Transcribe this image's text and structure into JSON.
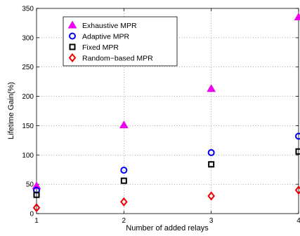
{
  "chart_data": {
    "type": "scatter",
    "title": "",
    "xlabel": "Number of added relays",
    "ylabel": "Lifetime Gain(%)",
    "xlim": [
      1,
      4
    ],
    "ylim": [
      0,
      350
    ],
    "xticks": [
      1,
      2,
      3,
      4
    ],
    "yticks": [
      0,
      50,
      100,
      150,
      200,
      250,
      300,
      350
    ],
    "grid": true,
    "legend_position": "top-left",
    "series": [
      {
        "name": "Exhaustive MPR",
        "marker": "triangle",
        "color": "#ee00ee",
        "x": [
          1,
          2,
          3,
          4
        ],
        "y": [
          47,
          151,
          213,
          335
        ]
      },
      {
        "name": "Adaptive MPR",
        "marker": "circle",
        "color": "#0000ee",
        "x": [
          1,
          2,
          3,
          4
        ],
        "y": [
          40,
          74,
          104,
          132
        ]
      },
      {
        "name": "Fixed MPR",
        "marker": "square",
        "color": "#000000",
        "x": [
          1,
          2,
          3,
          4
        ],
        "y": [
          32,
          56,
          84,
          106
        ]
      },
      {
        "name": "Random−based MPR",
        "marker": "diamond",
        "color": "#ee0000",
        "x": [
          1,
          2,
          3,
          4
        ],
        "y": [
          10,
          20,
          30,
          40
        ]
      }
    ]
  }
}
